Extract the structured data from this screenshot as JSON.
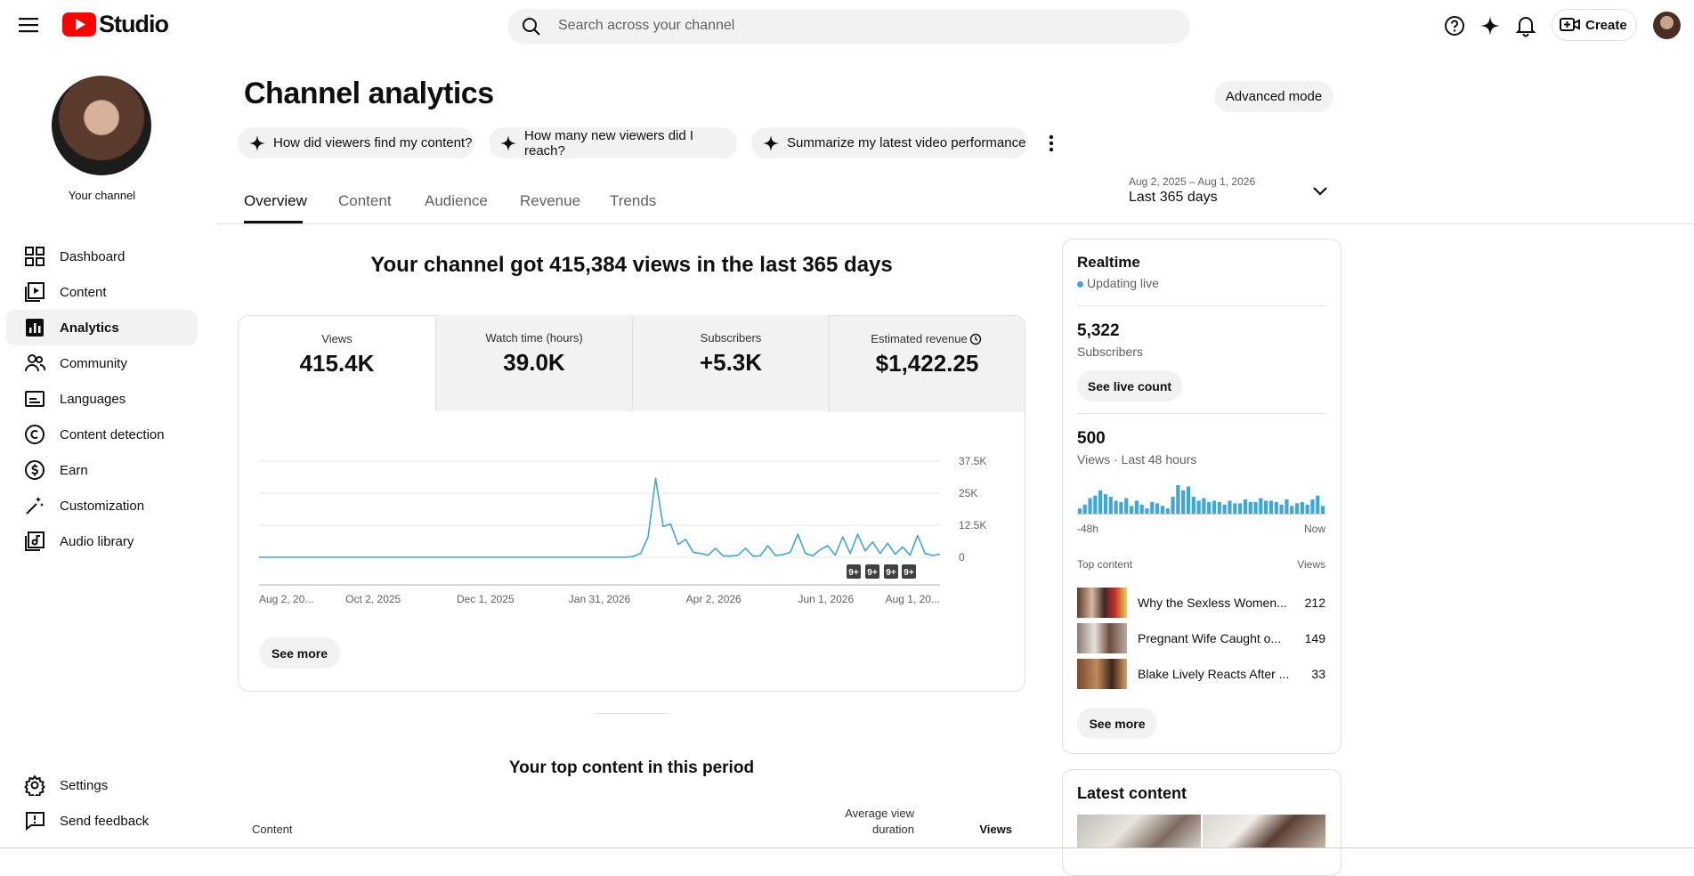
{
  "header": {
    "logo_text": "Studio",
    "search_placeholder": "Search across your channel",
    "create_label": "Create"
  },
  "sidebar": {
    "channel_label": "Your channel",
    "nav": [
      "Dashboard",
      "Content",
      "Analytics",
      "Community",
      "Languages",
      "Content detection",
      "Earn",
      "Customization",
      "Audio library"
    ],
    "footer": [
      "Settings",
      "Send feedback"
    ]
  },
  "page": {
    "title": "Channel analytics",
    "advanced_mode": "Advanced mode",
    "chips": [
      "How did viewers find my content?",
      "How many new viewers did I reach?",
      "Summarize my latest video performance"
    ],
    "date_range": "Aug 2, 2025 – Aug 1, 2026",
    "period": "Last 365 days",
    "tabs": [
      "Overview",
      "Content",
      "Audience",
      "Revenue",
      "Trends"
    ]
  },
  "overview": {
    "headline": "Your channel got 415,384 views in the last 365 days",
    "metrics": [
      {
        "label": "Views",
        "value": "415.4K"
      },
      {
        "label": "Watch time (hours)",
        "value": "39.0K"
      },
      {
        "label": "Subscribers",
        "value": "+5.3K"
      },
      {
        "label": "Estimated revenue",
        "value": "$1,422.25"
      }
    ],
    "chart": {
      "type": "line",
      "color": "#3ea6d8",
      "xlim": [
        0,
        91
      ],
      "ylim": [
        0,
        37500
      ],
      "yticks": [
        0,
        {
          "value": 12500,
          "label": "12.5K"
        },
        {
          "value": 25000,
          "label": "25K"
        },
        {
          "value": 37500,
          "label": "37.5K"
        }
      ],
      "xticks": [
        {
          "value": 0,
          "label": "Aug 2, 20..."
        },
        {
          "value": 15.25,
          "label": "Oct 2, 2025"
        },
        {
          "value": 30.25,
          "label": "Dec 1, 2025"
        },
        {
          "value": 45.5,
          "label": "Jan 31, 2026"
        },
        {
          "value": 60.75,
          "label": "Apr 2, 2026"
        },
        {
          "value": 75.75,
          "label": "Jun 1, 2026"
        },
        {
          "value": 91,
          "label": "Aug 1, 20..."
        }
      ],
      "grid": true,
      "values": [
        0,
        0,
        0,
        0,
        0,
        0,
        0,
        0,
        0,
        0,
        0,
        0,
        0,
        0,
        0,
        0,
        0,
        0,
        0,
        0,
        0,
        0,
        0,
        0,
        0,
        0,
        0,
        0,
        0,
        0,
        0,
        0,
        0,
        0,
        0,
        0,
        0,
        0,
        0,
        0,
        0,
        0,
        0,
        0,
        0,
        0,
        0,
        0,
        0,
        0,
        300,
        1500,
        8000,
        30800,
        12000,
        13000,
        5000,
        7000,
        2000,
        1500,
        800,
        3500,
        600,
        500,
        800,
        3500,
        500,
        600,
        4500,
        700,
        1000,
        2000,
        9000,
        1500,
        600,
        3000,
        4500,
        800,
        8000,
        1500,
        9000,
        2500,
        6000,
        1500,
        5500,
        1200,
        4000,
        800,
        8500,
        1500,
        700,
        1200
      ],
      "annotations": [
        "9+",
        "9+",
        "9+",
        "9+"
      ]
    },
    "see_more": "See more",
    "top_content_title": "Your top content in this period",
    "table_headers": [
      "Content",
      "Average view duration",
      "Views"
    ]
  },
  "realtime": {
    "title": "Realtime",
    "status": "Updating live",
    "subscribers": "5,322",
    "subscribers_label": "Subscribers",
    "live_count_button": "See live count",
    "views": "500",
    "views_label": "Views · Last 48 hours",
    "bars": [
      4,
      7,
      12,
      14,
      18,
      15,
      13,
      10,
      9,
      12,
      6,
      10,
      7,
      4,
      9,
      8,
      6,
      4,
      13,
      22,
      18,
      21,
      13,
      10,
      12,
      9,
      10,
      9,
      7,
      10,
      8,
      8,
      11,
      9,
      9,
      12,
      10,
      10,
      9,
      7,
      11,
      6,
      8,
      9,
      7,
      11,
      14,
      6
    ],
    "axis_start": "-48h",
    "axis_end": "Now",
    "top_content_label": "Top content",
    "views_header": "Views",
    "top_content": [
      {
        "title": "Why the Sexless Women...",
        "views": 212
      },
      {
        "title": "Pregnant Wife Caught o...",
        "views": 149
      },
      {
        "title": "Blake Lively Reacts After ...",
        "views": 33
      }
    ],
    "see_more": "See more"
  },
  "latest": {
    "title": "Latest content"
  }
}
